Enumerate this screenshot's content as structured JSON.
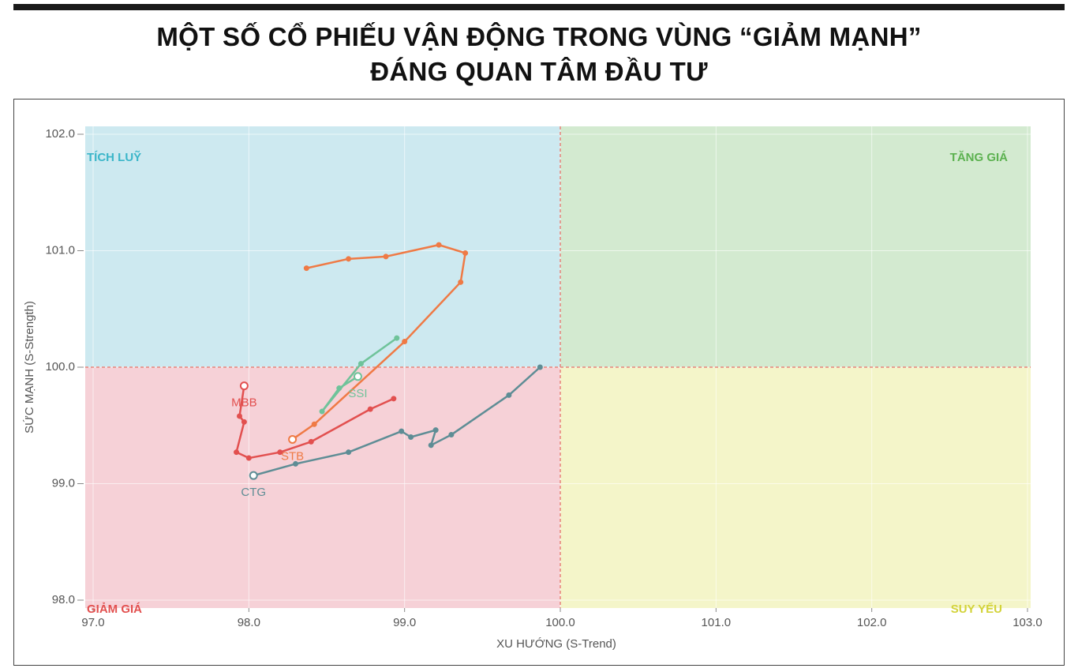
{
  "chart_data": {
    "type": "rrg",
    "title": "MỘT SỐ CỔ PHIẾU VẬN ĐỘNG TRONG VÙNG “GIẢM MẠNH”",
    "subtitle": "ĐÁNG QUAN TÂM ĐẦU TƯ",
    "x_label": "XU HƯỚNG (S-Trend)",
    "y_label": "SỨC MẠNH (S-Strength)",
    "quadrant_labels": {
      "top_left": "TÍCH LUỸ",
      "top_right": "TĂNG GIÁ",
      "bottom_left": "GIẢM GIÁ",
      "bottom_right": "SUY YẾU"
    },
    "center": [
      100,
      100
    ],
    "xlim": [
      97,
      103
    ],
    "ylim": [
      98,
      102
    ],
    "xticks": [
      {
        "value": 97,
        "label": "97.0"
      },
      {
        "value": 98,
        "label": "98.0"
      },
      {
        "value": 99,
        "label": "99.0"
      },
      {
        "value": 100,
        "label": "100.0"
      },
      {
        "value": 101,
        "label": "101.0"
      },
      {
        "value": 102,
        "label": "102.0"
      },
      {
        "value": 103,
        "label": "103.0"
      }
    ],
    "yticks": [
      {
        "value": 98,
        "label": "98.0"
      },
      {
        "value": 99,
        "label": "99.0"
      },
      {
        "value": 100,
        "label": "100.0"
      },
      {
        "value": 101,
        "label": "101.0"
      },
      {
        "value": 102,
        "label": "102.0"
      }
    ],
    "grid": true,
    "series": [
      {
        "name": "STB",
        "color": "#ef7a45",
        "x": [
          98.37,
          98.64,
          98.88,
          99.22,
          99.39,
          99.36,
          99.0,
          98.42,
          98.28
        ],
        "values": [
          100.85,
          100.93,
          100.95,
          101.05,
          100.98,
          100.73,
          100.22,
          99.51,
          99.38
        ]
      },
      {
        "name": "SSI",
        "color": "#6fc39a",
        "x": [
          98.95,
          98.72,
          98.47,
          98.58,
          98.7
        ],
        "values": [
          100.25,
          100.03,
          99.62,
          99.82,
          99.92
        ]
      },
      {
        "name": "MBB",
        "color": "#e2504f",
        "x": [
          98.93,
          98.78,
          98.4,
          98.2,
          98.0,
          97.92,
          97.97,
          97.94,
          97.97
        ],
        "values": [
          99.73,
          99.64,
          99.36,
          99.27,
          99.22,
          99.27,
          99.53,
          99.58,
          99.84
        ]
      },
      {
        "name": "CTG",
        "color": "#5e8d95",
        "x": [
          99.87,
          99.67,
          99.3,
          99.17,
          99.2,
          99.04,
          98.98,
          98.64,
          98.3,
          98.03
        ],
        "values": [
          100.0,
          99.76,
          99.42,
          99.33,
          99.46,
          99.4,
          99.45,
          99.27,
          99.17,
          99.07
        ]
      }
    ]
  }
}
